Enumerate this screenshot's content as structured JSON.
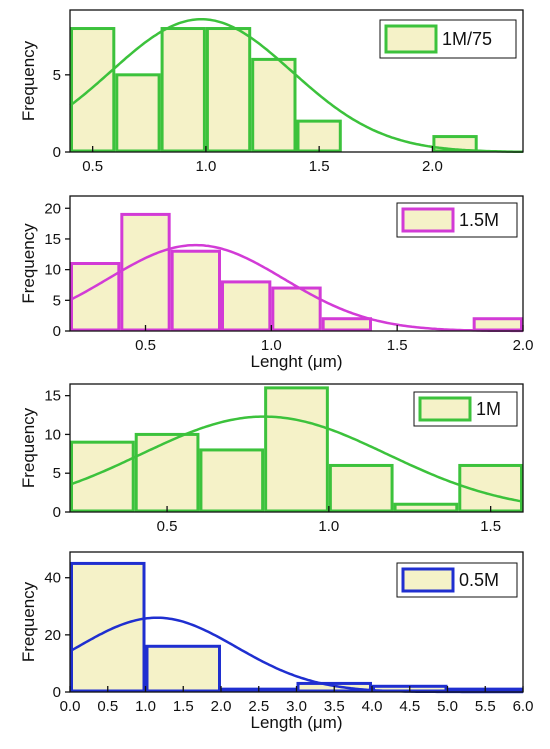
{
  "chart_data": [
    {
      "type": "bar",
      "fit": "gaussian",
      "legend": "1M/75",
      "ylabel": "Frequency",
      "xlabel": "",
      "xlim": [
        0.4,
        2.4
      ],
      "ylim": [
        0,
        9.2
      ],
      "xticks": [
        "0.5",
        "1.0",
        "1.5",
        "2.0"
      ],
      "yticks": [
        "0",
        "5"
      ],
      "bins": [
        {
          "x0": 0.4,
          "x1": 0.6,
          "count": 8
        },
        {
          "x0": 0.6,
          "x1": 0.8,
          "count": 5
        },
        {
          "x0": 0.8,
          "x1": 1.0,
          "count": 8
        },
        {
          "x0": 1.0,
          "x1": 1.2,
          "count": 8
        },
        {
          "x0": 1.2,
          "x1": 1.4,
          "count": 6
        },
        {
          "x0": 1.4,
          "x1": 1.6,
          "count": 2
        },
        {
          "x0": 2.0,
          "x1": 2.2,
          "count": 1
        }
      ],
      "fit_params": {
        "peak": 8.6,
        "mean": 0.98,
        "sigma": 0.4
      },
      "colors": {
        "stroke": "#3cc23c",
        "fill": "#f5f2c8",
        "fit": "#3cc23c"
      }
    },
    {
      "type": "bar",
      "fit": "gaussian",
      "legend": "1.5M",
      "ylabel": "Frequency",
      "xlabel": "Lenght (μm)",
      "xlim": [
        0.2,
        2.0
      ],
      "ylim": [
        0,
        22
      ],
      "xticks": [
        "0.5",
        "1.0",
        "1.5",
        "2.0"
      ],
      "yticks": [
        "0",
        "5",
        "10",
        "15",
        "20"
      ],
      "bins": [
        {
          "x0": 0.2,
          "x1": 0.4,
          "count": 11
        },
        {
          "x0": 0.4,
          "x1": 0.6,
          "count": 19
        },
        {
          "x0": 0.6,
          "x1": 0.8,
          "count": 13
        },
        {
          "x0": 0.8,
          "x1": 1.0,
          "count": 8
        },
        {
          "x0": 1.0,
          "x1": 1.2,
          "count": 7
        },
        {
          "x0": 1.2,
          "x1": 1.4,
          "count": 2
        },
        {
          "x0": 1.8,
          "x1": 2.0,
          "count": 2
        }
      ],
      "fit_params": {
        "peak": 14,
        "mean": 0.7,
        "sigma": 0.35
      },
      "colors": {
        "stroke": "#d23bd6",
        "fill": "#f5f2c8",
        "fit": "#d23bd6"
      }
    },
    {
      "type": "bar",
      "fit": "gaussian",
      "legend": "1M",
      "ylabel": "Frequency",
      "xlabel": "",
      "xlim": [
        0.2,
        1.6
      ],
      "ylim": [
        0,
        16.5
      ],
      "xticks": [
        "0.5",
        "1.0",
        "1.5"
      ],
      "yticks": [
        "0",
        "5",
        "10",
        "15"
      ],
      "bins": [
        {
          "x0": 0.2,
          "x1": 0.4,
          "count": 9
        },
        {
          "x0": 0.4,
          "x1": 0.6,
          "count": 10
        },
        {
          "x0": 0.6,
          "x1": 0.8,
          "count": 8
        },
        {
          "x0": 0.8,
          "x1": 1.0,
          "count": 16
        },
        {
          "x0": 1.0,
          "x1": 1.2,
          "count": 6
        },
        {
          "x0": 1.2,
          "x1": 1.4,
          "count": 1
        },
        {
          "x0": 1.4,
          "x1": 1.6,
          "count": 6
        }
      ],
      "fit_params": {
        "peak": 12.3,
        "mean": 0.8,
        "sigma": 0.38
      },
      "colors": {
        "stroke": "#3cc23c",
        "fill": "#f5f2c8",
        "fit": "#3cc23c"
      }
    },
    {
      "type": "bar",
      "fit": "gaussian",
      "legend": "0.5M",
      "ylabel": "Frequency",
      "xlabel": "Length (μm)",
      "xlim": [
        0,
        6.0
      ],
      "ylim": [
        0,
        49
      ],
      "xticks": [
        "0.0",
        "0.5",
        "1.0",
        "1.5",
        "2.0",
        "2.5",
        "3.0",
        "3.5",
        "4.0",
        "4.5",
        "5.0",
        "5.5",
        "6.0"
      ],
      "yticks": [
        "0",
        "20",
        "40"
      ],
      "bins": [
        {
          "x0": 0,
          "x1": 1,
          "count": 45
        },
        {
          "x0": 1,
          "x1": 2,
          "count": 16
        },
        {
          "x0": 2,
          "x1": 3,
          "count": 1
        },
        {
          "x0": 3,
          "x1": 4,
          "count": 3
        },
        {
          "x0": 4,
          "x1": 5,
          "count": 2
        },
        {
          "x0": 5,
          "x1": 6,
          "count": 1
        }
      ],
      "fit_params": {
        "peak": 26,
        "mean": 1.15,
        "sigma": 1.05
      },
      "colors": {
        "stroke": "#1f2fd0",
        "fill": "#f5f2c8",
        "fit": "#1f2fd0"
      }
    }
  ]
}
